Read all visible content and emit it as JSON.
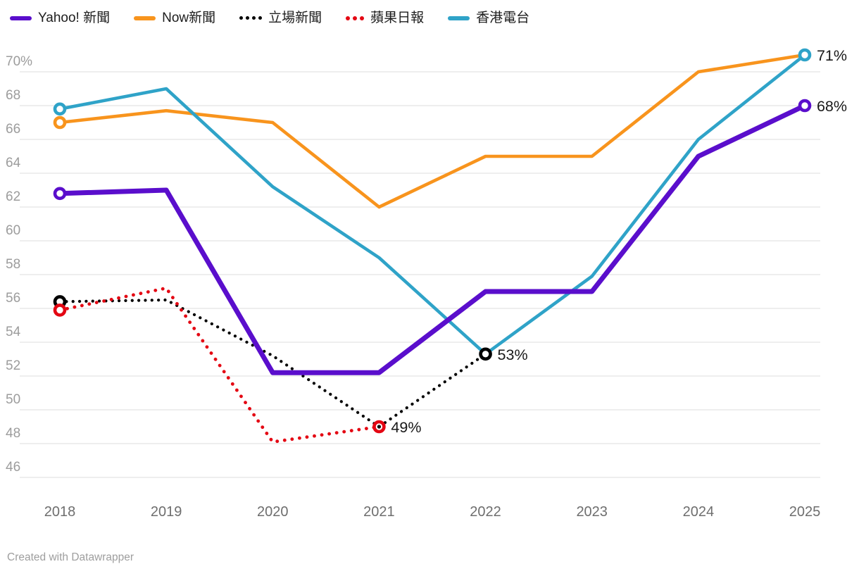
{
  "footer": {
    "credit": "Created with Datawrapper"
  },
  "style": {
    "grid_color": "#e9e9e9",
    "y_tick_color": "#9c9c9c",
    "x_tick_color": "#6e6e6e",
    "end_label_color": "#191919",
    "background": "#ffffff"
  },
  "legend": {
    "items": [
      {
        "id": "yahoo-news",
        "label": "Yahoo! 新聞",
        "color": "#5a0ecc",
        "style": "solid",
        "dots": 0
      },
      {
        "id": "now-news",
        "label": "Now新聞",
        "color": "#f8941d",
        "style": "solid",
        "dots": 0
      },
      {
        "id": "stand-news",
        "label": "立場新聞",
        "color": "#000000",
        "style": "dotted",
        "dots": 4
      },
      {
        "id": "apple-daily",
        "label": "蘋果日報",
        "color": "#e40713",
        "style": "dotted",
        "dots": 3
      },
      {
        "id": "rthk",
        "label": "香港電台",
        "color": "#2fa3c8",
        "style": "solid",
        "dots": 0
      }
    ]
  },
  "chart_data": {
    "type": "line",
    "x": [
      2018,
      2019,
      2020,
      2021,
      2022,
      2023,
      2024,
      2025
    ],
    "xlabel": "",
    "ylabel": "",
    "ylim": [
      46,
      70
    ],
    "grid": "horizontal",
    "legend_position": "top",
    "y_ticks": [
      {
        "v": 70,
        "label": "70%"
      },
      {
        "v": 68,
        "label": "68"
      },
      {
        "v": 66,
        "label": "66"
      },
      {
        "v": 64,
        "label": "64"
      },
      {
        "v": 62,
        "label": "62"
      },
      {
        "v": 60,
        "label": "60"
      },
      {
        "v": 58,
        "label": "58"
      },
      {
        "v": 56,
        "label": "56"
      },
      {
        "v": 54,
        "label": "54"
      },
      {
        "v": 52,
        "label": "52"
      },
      {
        "v": 50,
        "label": "50"
      },
      {
        "v": 48,
        "label": "48"
      },
      {
        "v": 46,
        "label": "46"
      }
    ],
    "x_ticks": [
      "2018",
      "2019",
      "2020",
      "2021",
      "2022",
      "2023",
      "2024",
      "2025"
    ],
    "series": [
      {
        "id": "now-news",
        "name": "Now新聞",
        "color": "#f8941d",
        "style": "solid",
        "width": 4.6,
        "values": [
          67,
          67.7,
          67,
          62,
          65,
          65,
          70,
          71
        ],
        "markers": [
          {
            "x": 2018,
            "y": 67
          }
        ]
      },
      {
        "id": "stand-news",
        "name": "立場新聞",
        "color": "#000000",
        "style": "dotted",
        "width": 4.2,
        "values": [
          56.4,
          56.5,
          53.2,
          49,
          53.3,
          null,
          null,
          null
        ],
        "markers": [
          {
            "x": 2018,
            "y": 56.4
          },
          {
            "x": 2022,
            "y": 53.3
          }
        ],
        "end_label": {
          "text": "53%",
          "x": 2022,
          "y": 53.3
        }
      },
      {
        "id": "apple-daily",
        "name": "蘋果日報",
        "color": "#e40713",
        "style": "dotted",
        "width": 4.8,
        "values": [
          55.9,
          57.2,
          48.1,
          49,
          null,
          null,
          null,
          null
        ],
        "markers": [
          {
            "x": 2018,
            "y": 55.9
          },
          {
            "x": 2021,
            "y": 49,
            "center_dot": true
          }
        ],
        "end_label": {
          "text": "49%",
          "x": 2021,
          "y": 49
        }
      },
      {
        "id": "rthk",
        "name": "香港電台",
        "color": "#2fa3c8",
        "style": "solid",
        "width": 4.6,
        "values": [
          67.8,
          69,
          63.2,
          59,
          53.3,
          57.9,
          66,
          71
        ],
        "markers": [
          {
            "x": 2018,
            "y": 67.8
          },
          {
            "x": 2025,
            "y": 71
          }
        ],
        "end_label": {
          "text": "71%",
          "x": 2025,
          "y": 71
        }
      },
      {
        "id": "yahoo-news",
        "name": "Yahoo! 新聞",
        "color": "#5a0ecc",
        "style": "solid",
        "width": 7,
        "values": [
          62.8,
          63,
          52.2,
          52.2,
          57,
          57,
          65,
          68
        ],
        "markers": [
          {
            "x": 2018,
            "y": 62.8
          },
          {
            "x": 2025,
            "y": 68
          }
        ],
        "end_label": {
          "text": "68%",
          "x": 2025,
          "y": 68
        }
      }
    ]
  }
}
